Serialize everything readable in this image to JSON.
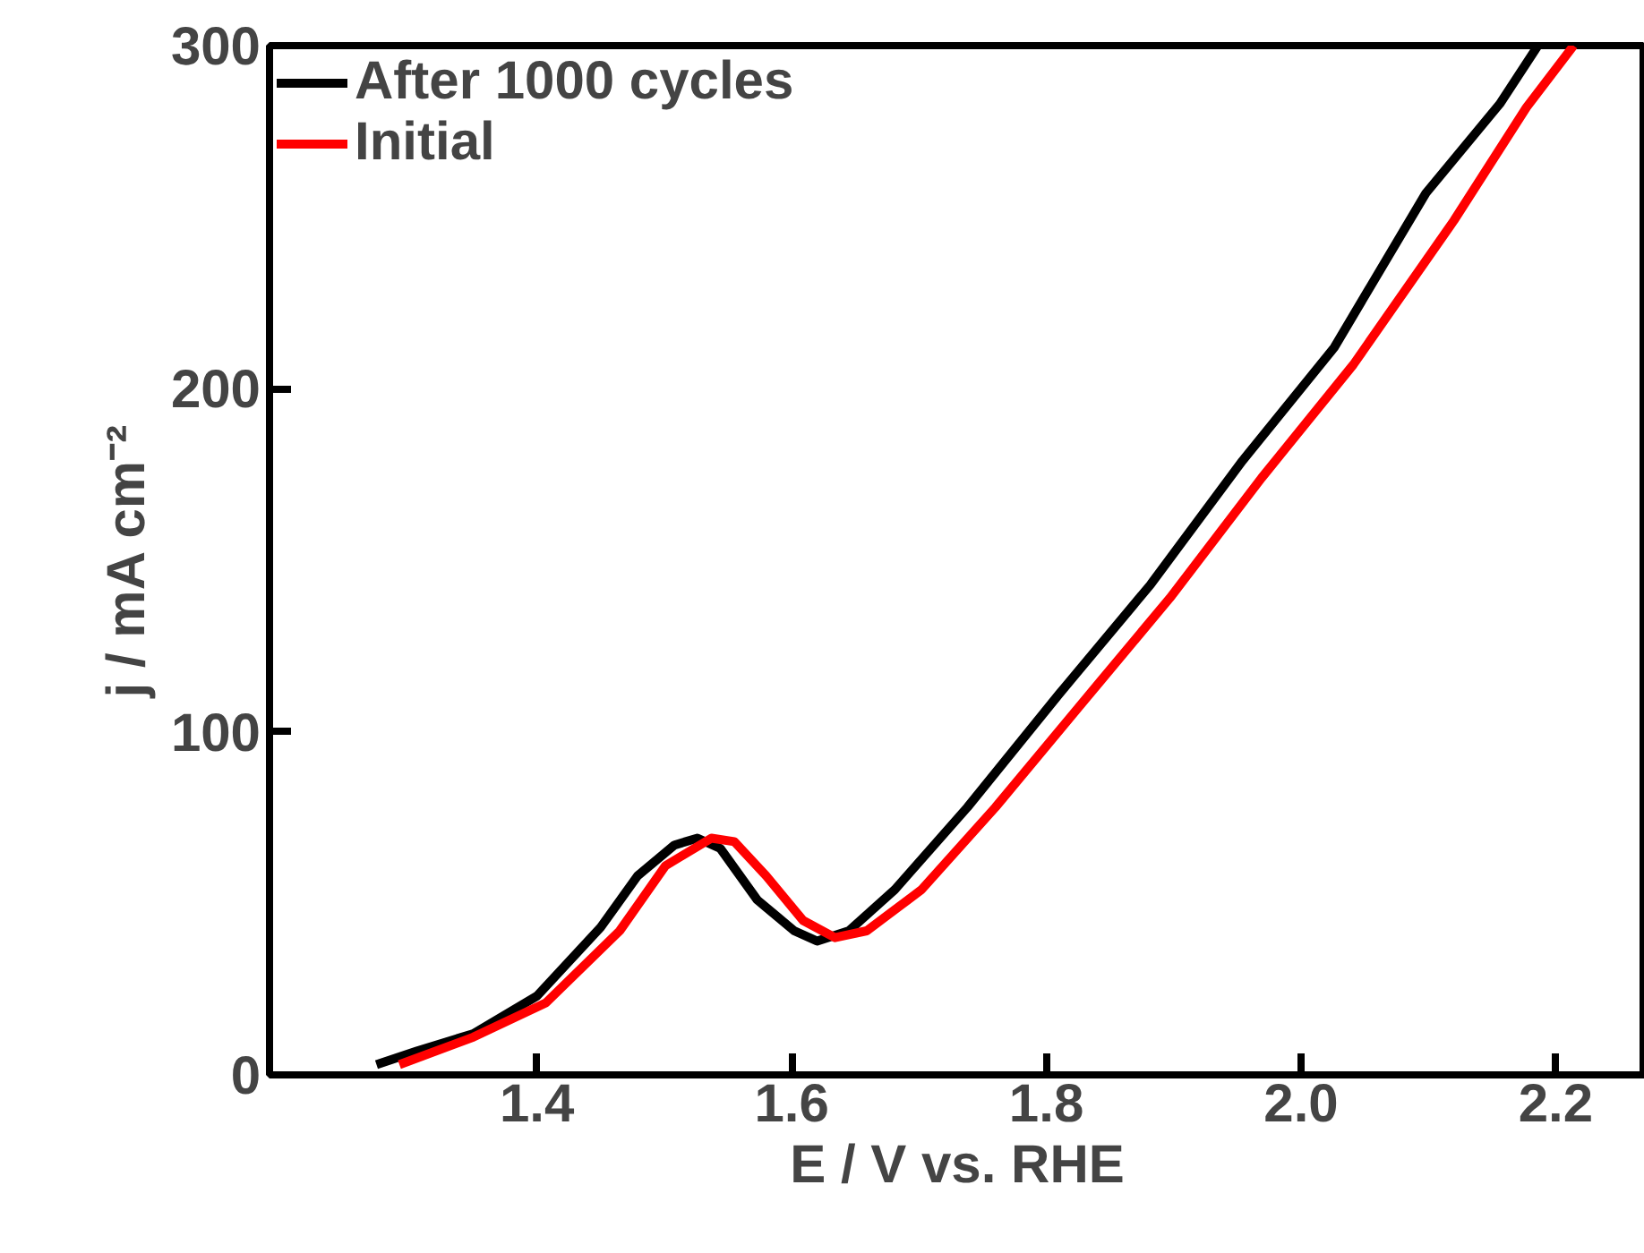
{
  "chart_data": {
    "type": "line",
    "xlabel": "E / V vs. RHE",
    "ylabel": "j / mA cm⁻²",
    "xlim": [
      1.19,
      2.27
    ],
    "ylim": [
      0,
      300
    ],
    "xticks": [
      1.4,
      1.6,
      1.8,
      {
        "value": 2.0,
        "label": "2.0"
      },
      2.2
    ],
    "yticks": [
      0,
      100,
      200,
      300
    ],
    "legend": "top left",
    "line_style": "solid",
    "series": [
      {
        "name": "After 1000 cycles",
        "color": "#000000",
        "x": [
          1.274,
          1.306,
          1.35,
          1.4,
          1.45,
          1.479,
          1.508,
          1.526,
          1.544,
          1.573,
          1.602,
          1.62,
          1.645,
          1.681,
          1.738,
          1.81,
          1.882,
          1.954,
          2.026,
          2.098,
          2.156,
          2.186
        ],
        "values": [
          3,
          7,
          12,
          23,
          43,
          58,
          67,
          69,
          66,
          51,
          42,
          39,
          42,
          54,
          78,
          111,
          143,
          179,
          212,
          257,
          283,
          300
        ]
      },
      {
        "name": "Initial",
        "color": "#ff0000",
        "x": [
          1.292,
          1.35,
          1.407,
          1.465,
          1.501,
          1.537,
          1.555,
          1.58,
          1.609,
          1.634,
          1.659,
          1.702,
          1.76,
          1.825,
          1.897,
          1.969,
          2.041,
          2.12,
          2.177,
          2.214
        ],
        "values": [
          3,
          11,
          21,
          42,
          61,
          69,
          68,
          58,
          45,
          40,
          42,
          54,
          78,
          107,
          139,
          174,
          207,
          249,
          282,
          300
        ]
      }
    ]
  }
}
